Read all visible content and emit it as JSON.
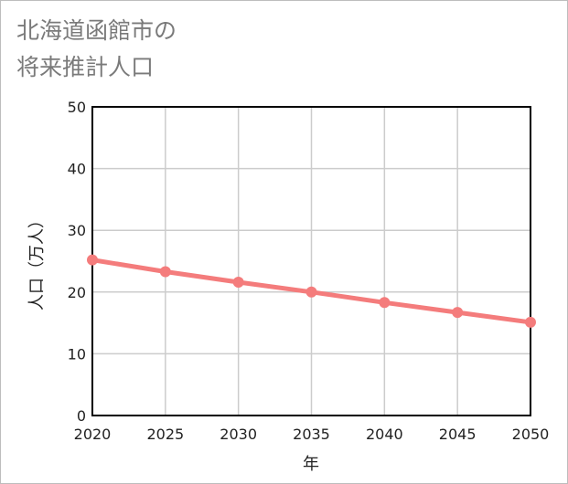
{
  "chart_data": {
    "type": "line",
    "title_line1": "北海道函館市の",
    "title_line2": "将来推計人口",
    "xlabel": "年",
    "ylabel": "人口（万人）",
    "x": [
      2020,
      2025,
      2030,
      2035,
      2040,
      2045,
      2050
    ],
    "x_ticks": [
      "2020",
      "2025",
      "2030",
      "2035",
      "2040",
      "2045",
      "2050"
    ],
    "y_ticks": [
      "0",
      "10",
      "20",
      "30",
      "40",
      "50"
    ],
    "xlim": [
      2020,
      2050
    ],
    "ylim": [
      0,
      50
    ],
    "grid": true,
    "series": [
      {
        "name": "人口",
        "values": [
          25.2,
          23.3,
          21.6,
          20.0,
          18.3,
          16.7,
          15.1
        ],
        "color": "#f47c7c"
      }
    ]
  }
}
